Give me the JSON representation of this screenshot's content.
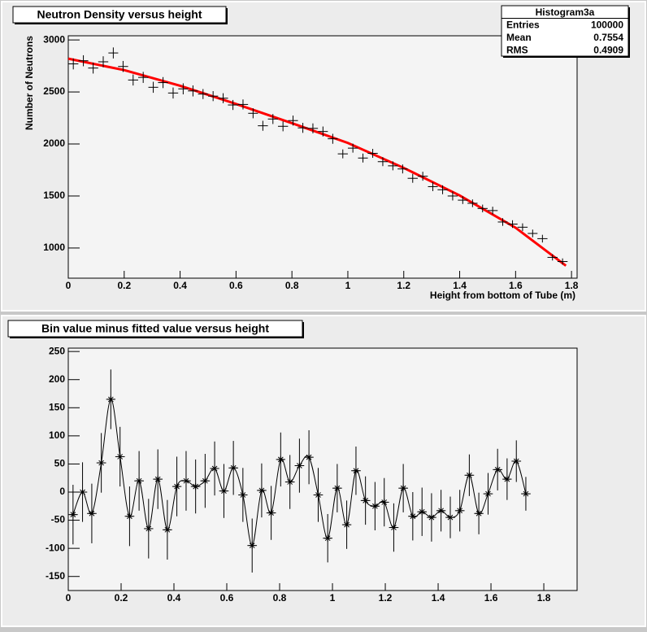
{
  "chart_data": [
    {
      "type": "scatter",
      "title": "Neutron Density versus height",
      "x_label": "Height from bottom of Tube (m)",
      "y_label": "Number of Neutrons",
      "x": [
        0.018,
        0.054,
        0.089,
        0.125,
        0.161,
        0.196,
        0.232,
        0.268,
        0.304,
        0.339,
        0.375,
        0.411,
        0.446,
        0.482,
        0.518,
        0.554,
        0.589,
        0.625,
        0.661,
        0.696,
        0.732,
        0.768,
        0.804,
        0.839,
        0.875,
        0.911,
        0.946,
        0.982,
        1.018,
        1.054,
        1.089,
        1.125,
        1.161,
        1.196,
        1.232,
        1.268,
        1.304,
        1.339,
        1.375,
        1.411,
        1.446,
        1.482,
        1.518,
        1.554,
        1.589,
        1.625,
        1.661,
        1.696,
        1.732,
        1.768
      ],
      "values": [
        2770,
        2800,
        2730,
        2790,
        2875,
        2745,
        2615,
        2640,
        2545,
        2590,
        2490,
        2530,
        2510,
        2480,
        2460,
        2440,
        2375,
        2380,
        2295,
        2175,
        2240,
        2170,
        2225,
        2155,
        2150,
        2120,
        2050,
        1905,
        1960,
        1865,
        1910,
        1830,
        1790,
        1760,
        1670,
        1690,
        1590,
        1560,
        1500,
        1460,
        1430,
        1380,
        1360,
        1250,
        1230,
        1200,
        1140,
        1090,
        910,
        870
      ],
      "errors": [
        53,
        53,
        53,
        53,
        53,
        53,
        53,
        53,
        53,
        53,
        53,
        53,
        53,
        48,
        48,
        48,
        48,
        48,
        48,
        48,
        48,
        48,
        48,
        48,
        48,
        48,
        48,
        43,
        43,
        43,
        43,
        43,
        43,
        43,
        43,
        43,
        43,
        43,
        43,
        37,
        37,
        37,
        37,
        37,
        37,
        37,
        37,
        37,
        30,
        30
      ],
      "color": "#000000",
      "fit": {
        "color": "#ff0000",
        "x": [
          0,
          0.2,
          0.4,
          0.6,
          0.8,
          1,
          1.2,
          1.4,
          1.6,
          1.78
        ],
        "values": [
          2820,
          2710,
          2560,
          2385,
          2200,
          2010,
          1770,
          1505,
          1195,
          830
        ]
      },
      "xlim": [
        0,
        1.82
      ],
      "xticks": [
        0,
        0.2,
        0.4,
        0.6,
        0.8,
        1,
        1.2,
        1.4,
        1.6,
        1.8
      ],
      "ylim": [
        710,
        3040
      ],
      "yticks": [
        1000,
        1500,
        2000,
        2500,
        3000
      ],
      "stats_title": "Histogram3a",
      "stats": [
        {
          "label": "Entries",
          "value": 100000
        },
        {
          "label": "Mean",
          "value": 0.7554
        },
        {
          "label": "RMS",
          "value": 0.4909
        }
      ]
    },
    {
      "type": "scatter",
      "title": "Bin value minus fitted value versus height",
      "curve": true,
      "marker": "asterisk",
      "x": [
        0.018,
        0.054,
        0.089,
        0.125,
        0.161,
        0.196,
        0.232,
        0.268,
        0.304,
        0.339,
        0.375,
        0.411,
        0.446,
        0.482,
        0.518,
        0.554,
        0.589,
        0.625,
        0.661,
        0.696,
        0.732,
        0.768,
        0.804,
        0.839,
        0.875,
        0.911,
        0.946,
        0.982,
        1.018,
        1.054,
        1.089,
        1.125,
        1.161,
        1.196,
        1.232,
        1.268,
        1.304,
        1.339,
        1.375,
        1.411,
        1.446,
        1.482,
        1.518,
        1.554,
        1.589,
        1.625,
        1.661,
        1.696,
        1.732
      ],
      "values": [
        -40,
        0,
        -38,
        52,
        165,
        63,
        -43,
        20,
        -65,
        23,
        -67,
        10,
        20,
        10,
        20,
        42,
        2,
        43,
        -5,
        -95,
        3,
        -37,
        58,
        18,
        47,
        62,
        -5,
        -82,
        7,
        -58,
        38,
        -15,
        -25,
        -18,
        -63,
        7,
        -43,
        -35,
        -45,
        -33,
        -45,
        -33,
        30,
        -38,
        -3,
        40,
        23,
        55,
        -3
      ],
      "errors": [
        53,
        53,
        53,
        53,
        53,
        53,
        53,
        53,
        53,
        53,
        53,
        53,
        53,
        48,
        48,
        48,
        48,
        48,
        48,
        48,
        48,
        48,
        48,
        48,
        48,
        48,
        48,
        43,
        43,
        43,
        43,
        43,
        43,
        43,
        43,
        43,
        43,
        43,
        43,
        37,
        37,
        37,
        37,
        37,
        37,
        37,
        37,
        37,
        30
      ],
      "color": "#000000",
      "xlim": [
        0,
        1.926
      ],
      "xticks": [
        0,
        0.2,
        0.4,
        0.6,
        0.8,
        1,
        1.2,
        1.4,
        1.6,
        1.8
      ],
      "ylim": [
        -175,
        256
      ],
      "yticks": [
        -150,
        -100,
        -50,
        0,
        50,
        100,
        150,
        200,
        250
      ]
    }
  ]
}
